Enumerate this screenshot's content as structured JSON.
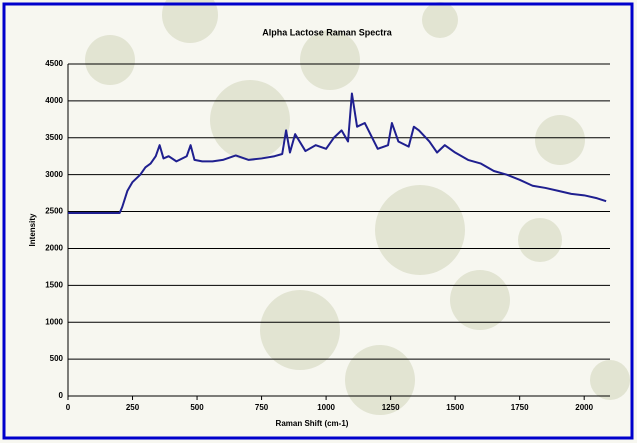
{
  "chart_data": {
    "type": "line",
    "title": "Alpha Lactose Raman Spectra",
    "x_label": "Raman Shift (cm-1)",
    "y_label": "Intensity",
    "x": [
      0,
      100,
      200,
      210,
      230,
      250,
      280,
      300,
      320,
      340,
      355,
      370,
      390,
      420,
      460,
      475,
      490,
      520,
      560,
      600,
      650,
      700,
      750,
      800,
      830,
      845,
      860,
      880,
      920,
      960,
      1000,
      1030,
      1060,
      1085,
      1100,
      1120,
      1150,
      1200,
      1240,
      1255,
      1280,
      1320,
      1340,
      1360,
      1400,
      1430,
      1460,
      1500,
      1550,
      1600,
      1650,
      1700,
      1750,
      1800,
      1850,
      1900,
      1950,
      2000,
      2050,
      2085
    ],
    "values": [
      2480,
      2480,
      2480,
      2560,
      2780,
      2900,
      3000,
      3100,
      3150,
      3250,
      3400,
      3220,
      3250,
      3180,
      3250,
      3400,
      3200,
      3180,
      3180,
      3200,
      3260,
      3200,
      3220,
      3250,
      3280,
      3600,
      3300,
      3550,
      3320,
      3400,
      3350,
      3500,
      3600,
      3450,
      4100,
      3650,
      3700,
      3350,
      3400,
      3700,
      3450,
      3380,
      3650,
      3600,
      3450,
      3300,
      3400,
      3300,
      3200,
      3150,
      3050,
      3000,
      2930,
      2850,
      2820,
      2780,
      2740,
      2720,
      2680,
      2640
    ],
    "color": "#1f1f8f",
    "xlim": [
      0,
      2100
    ],
    "xticks": [
      0,
      250,
      500,
      750,
      1000,
      1250,
      1500,
      1750,
      2000
    ],
    "ylim": [
      0,
      4500
    ],
    "yticks": [
      0,
      500,
      1000,
      1500,
      2000,
      2500,
      3000,
      3500,
      4000,
      4500
    ],
    "grid": true
  }
}
